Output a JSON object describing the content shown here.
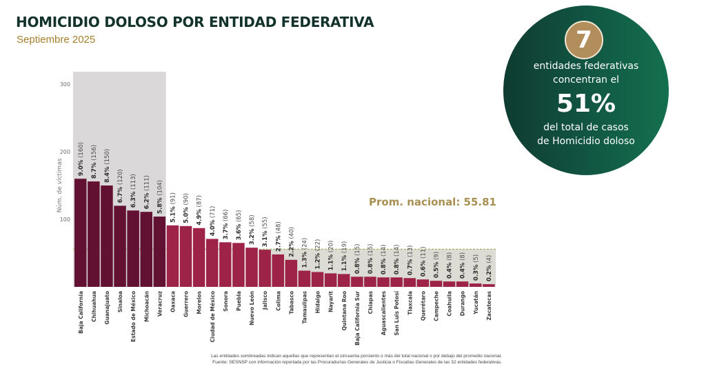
{
  "header": {
    "title": "HOMICIDIO DOLOSO POR ENTIDAD FEDERATIVA",
    "subtitle": "Septiembre 2025"
  },
  "callout": {
    "count": "7",
    "line1": "entidades federativas",
    "line2": "concentran el",
    "percent": "51%",
    "line3": "del total de casos",
    "line4": "de Homicidio doloso"
  },
  "colors": {
    "top_entities": "#621132",
    "other_entities": "#9e2348",
    "shade_top": "#dad8d9",
    "shade_below_avg": "#dcdcd5",
    "avg_line": "#8a9a3a",
    "avg_label": "#a88f52",
    "circle_start": "#0f3b30",
    "circle_end": "#14704f",
    "badge": "#b38e5d"
  },
  "chart_data": {
    "type": "bar",
    "title": "HOMICIDIO DOLOSO POR ENTIDAD FEDERATIVA",
    "subtitle": "Septiembre 2025",
    "xlabel": "",
    "ylabel": "Núm. de víctimas",
    "ylim": [
      0,
      300
    ],
    "yticks": [
      100,
      200,
      300
    ],
    "grid": false,
    "categories": [
      "Baja California",
      "Chihuahua",
      "Guanajuato",
      "Sinaloa",
      "Estado de México",
      "Michoacán",
      "Veracruz",
      "Oaxaca",
      "Guerrero",
      "Morelos",
      "Ciudad de México",
      "Sonora",
      "Puebla",
      "Nuevo León",
      "Jalisco",
      "Colima",
      "Tabasco",
      "Tamaulipas",
      "Hidalgo",
      "Nayarit",
      "Quintana Roo",
      "Baja California Sur",
      "Chiapas",
      "Aguascalientes",
      "San Luis Potosí",
      "Tlaxcala",
      "Querétaro",
      "Campeche",
      "Coahuila",
      "Durango",
      "Yucatán",
      "Zacatecas"
    ],
    "values": [
      160,
      156,
      150,
      120,
      113,
      111,
      104,
      91,
      90,
      87,
      71,
      66,
      65,
      58,
      55,
      48,
      40,
      24,
      22,
      20,
      19,
      15,
      15,
      14,
      14,
      13,
      11,
      9,
      8,
      8,
      5,
      4
    ],
    "percent_labels": [
      "9.0%",
      "8.7%",
      "8.4%",
      "6.7%",
      "6.3%",
      "6.2%",
      "5.8%",
      "5.1%",
      "5.0%",
      "4.9%",
      "4.0%",
      "3.7%",
      "3.6%",
      "3.2%",
      "3.1%",
      "2.7%",
      "2.2%",
      "1.3%",
      "1.2%",
      "1.1%",
      "1.1%",
      "0.8%",
      "0.8%",
      "0.8%",
      "0.8%",
      "0.7%",
      "0.6%",
      "0.5%",
      "0.4%",
      "0.4%",
      "0.3%",
      "0.2%"
    ],
    "highlighted_top_count": 7,
    "reference_line": {
      "label": "Prom. nacional: 55.81",
      "value": 55.81
    },
    "shaded_below_average_from_index": 15
  },
  "footnote": {
    "line1": "Las entidades sombreadas indican aquellas que representan el cincuenta porciento o más del total nacional o por debajo del promedio nacional.",
    "line2": "Fuente: SESNSP con información reportada por las Procuradurías Generales de Justicia o Fiscalías Generales de las 32 entidades federativas."
  }
}
